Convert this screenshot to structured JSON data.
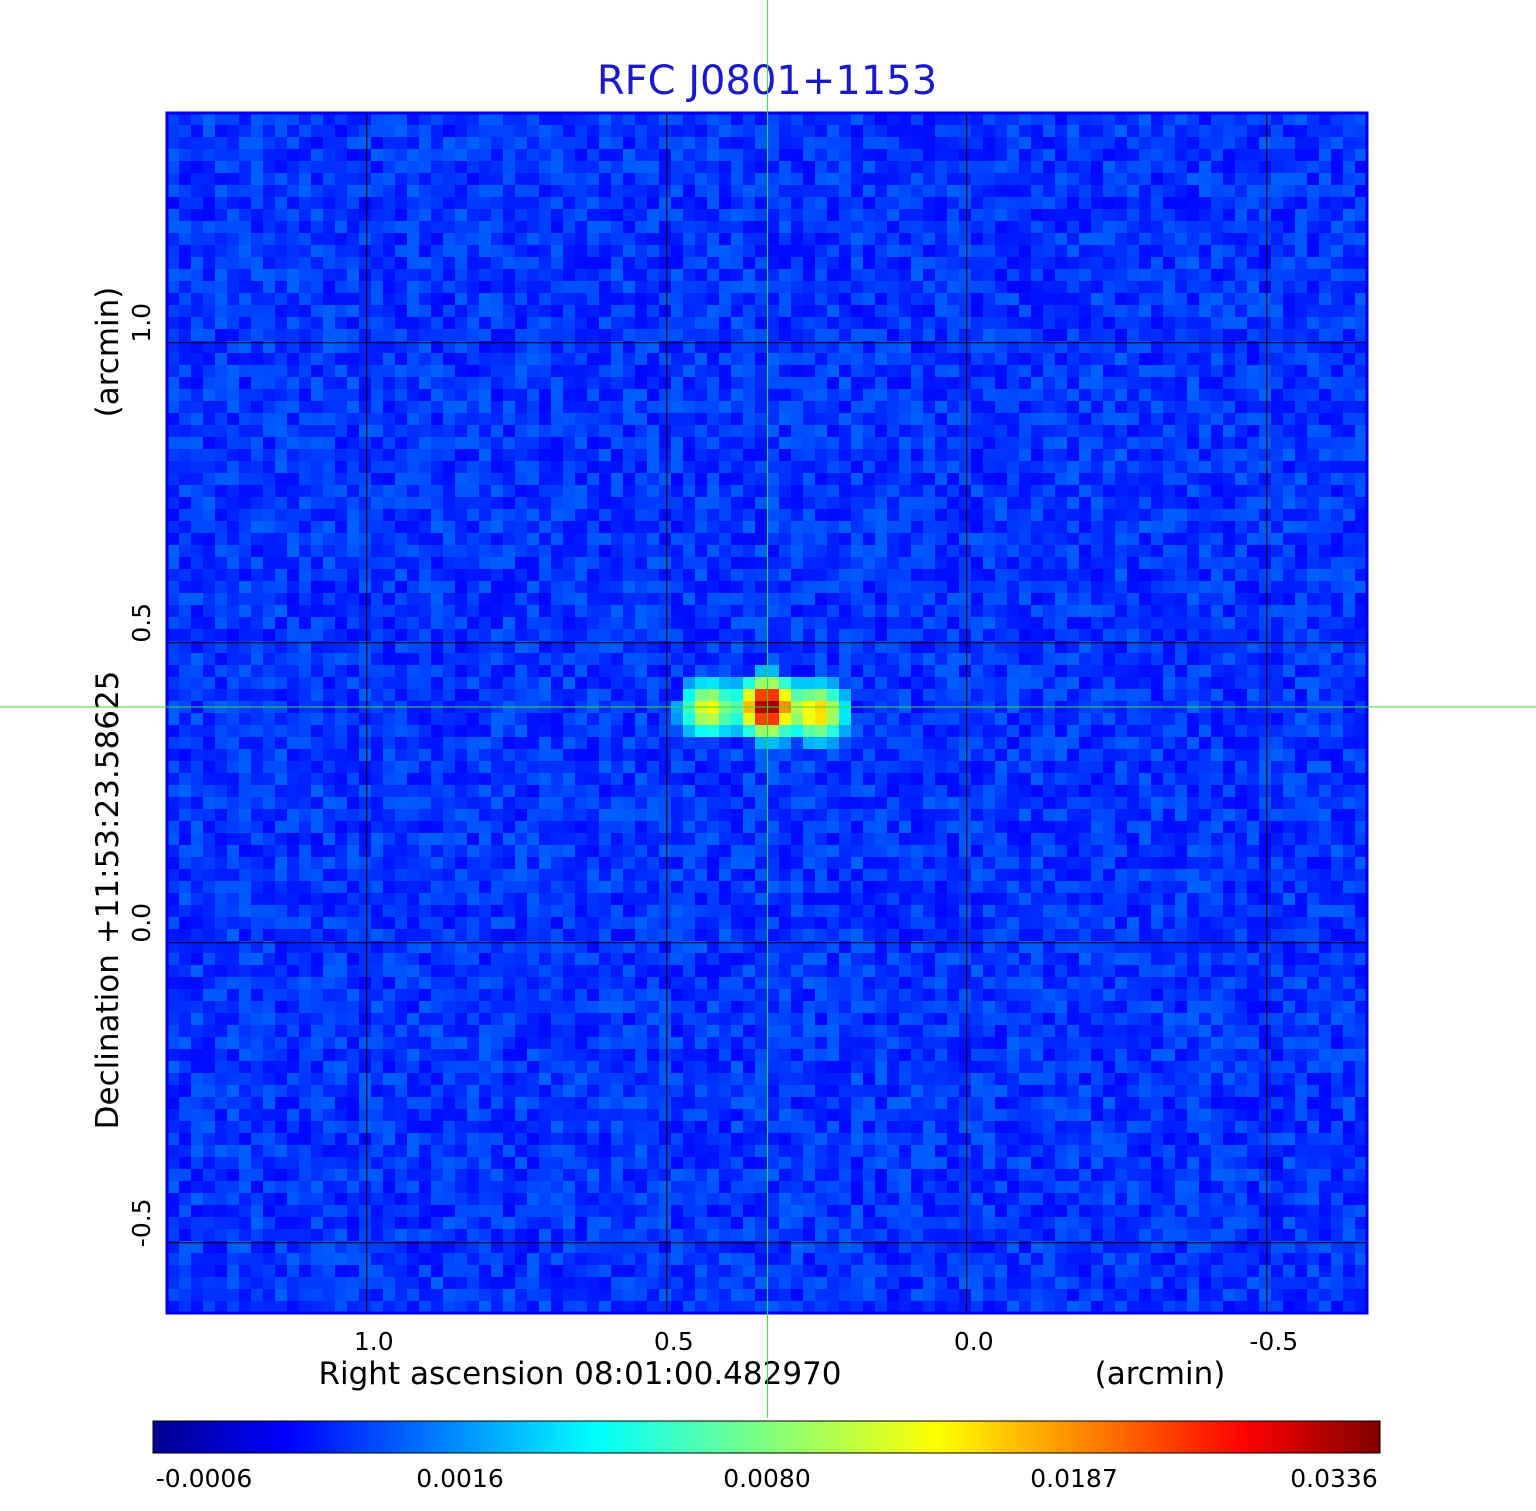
{
  "chart_data": {
    "type": "heatmap",
    "title": "RFC J0801+1153",
    "xlabel": "Right ascension  08:01:00.482970",
    "xunit": "(arcmin)",
    "ylabel": "Declination  +11:53:23.58625",
    "yunit": "(arcmin)",
    "xlim": [
      1.333,
      -0.667
    ],
    "ylim": [
      -0.617,
      1.383
    ],
    "x_ticks": [
      1.0,
      0.5,
      0.0,
      -0.5
    ],
    "x_tick_labels": [
      "1.0",
      "0.5",
      "0.0",
      "-0.5"
    ],
    "y_ticks": [
      1.0,
      0.5,
      0.0,
      -0.5
    ],
    "y_tick_labels": [
      "1.0",
      "0.5",
      "0.0",
      "-0.5"
    ],
    "grid": true,
    "crosshair": {
      "x": 0.332,
      "y": 0.393
    },
    "sources": [
      {
        "x": 0.43,
        "y": 0.39,
        "peak": 0.011
      },
      {
        "x": 0.332,
        "y": 0.393,
        "peak": 0.0336
      },
      {
        "x": 0.248,
        "y": 0.384,
        "peak": 0.014
      }
    ],
    "colorbar": {
      "tick_values": [
        -0.0006,
        0.0016,
        0.008,
        0.0187,
        0.0336
      ],
      "tick_labels": [
        "-0.0006",
        "0.0016",
        "0.0080",
        "0.0187",
        "0.0336"
      ],
      "colormap": "jet"
    }
  }
}
